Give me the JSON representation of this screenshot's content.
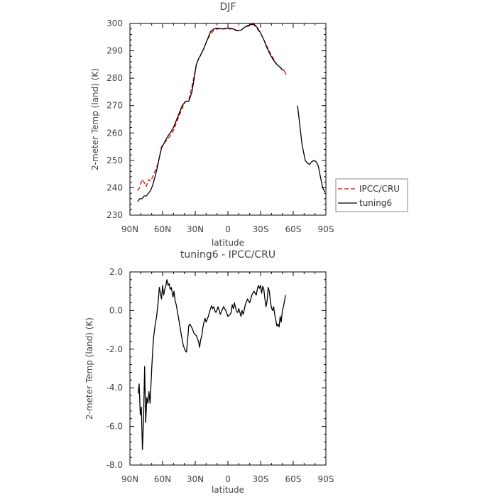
{
  "chart_data": [
    {
      "type": "line",
      "title": "DJF",
      "xlabel": "latitude",
      "ylabel": "2-meter Temp (land) (K)",
      "xlim": [
        90,
        -90
      ],
      "ylim": [
        230,
        300
      ],
      "xticks": [
        90,
        60,
        30,
        0,
        -30,
        -60,
        -90
      ],
      "xtick_labels": [
        "90N",
        "60N",
        "30N",
        "0",
        "30S",
        "60S",
        "90S"
      ],
      "yticks": [
        230,
        240,
        250,
        260,
        270,
        280,
        290,
        300
      ],
      "ytick_labels": [
        "230",
        "240",
        "250",
        "260",
        "270",
        "280",
        "290",
        "300"
      ],
      "legend": {
        "placement": "outside-right"
      },
      "series": [
        {
          "name": "IPCC/CRU",
          "color": "#dd0000",
          "style": "dashed",
          "segments": [
            [
              [
                83,
                239
              ],
              [
                81,
                240
              ],
              [
                79,
                243
              ],
              [
                77,
                242
              ],
              [
                75,
                240.5
              ],
              [
                73,
                243
              ],
              [
                71,
                242.5
              ],
              [
                69,
                244
              ],
              [
                67,
                246
              ],
              [
                65,
                248
              ],
              [
                63,
                251
              ],
              [
                61,
                255
              ],
              [
                59,
                256
              ],
              [
                57,
                257
              ],
              [
                55,
                258
              ],
              [
                53,
                259
              ],
              [
                50,
                261
              ],
              [
                48,
                263
              ],
              [
                45,
                266
              ],
              [
                42,
                269
              ],
              [
                39,
                271.5
              ],
              [
                36,
                272
              ],
              [
                33,
                277
              ],
              [
                31,
                281
              ],
              [
                29,
                285
              ],
              [
                27,
                287
              ],
              [
                25,
                288.5
              ],
              [
                22,
                291
              ],
              [
                19,
                294
              ],
              [
                16,
                296
              ],
              [
                13,
                297.5
              ],
              [
                10,
                298
              ],
              [
                5,
                298
              ],
              [
                0,
                298
              ],
              [
                -5,
                298
              ],
              [
                -8,
                297.5
              ],
              [
                -12,
                297.5
              ],
              [
                -15,
                298.5
              ],
              [
                -18,
                299
              ],
              [
                -21,
                299.2
              ],
              [
                -24,
                299.5
              ],
              [
                -27,
                298
              ],
              [
                -30,
                296.5
              ],
              [
                -33,
                294
              ],
              [
                -36,
                291.5
              ],
              [
                -39,
                289
              ],
              [
                -42,
                287
              ],
              [
                -45,
                285
              ],
              [
                -48,
                284
              ],
              [
                -50,
                283
              ],
              [
                -52,
                282.5
              ],
              [
                -54,
                281
              ]
            ]
          ]
        },
        {
          "name": "tuning6",
          "color": "#000000",
          "style": "solid",
          "segments": [
            [
              [
                83,
                235
              ],
              [
                81,
                236
              ],
              [
                79,
                236
              ],
              [
                77,
                237
              ],
              [
                75,
                237
              ],
              [
                73,
                238
              ],
              [
                71,
                239
              ],
              [
                69,
                241
              ],
              [
                67,
                244
              ],
              [
                65,
                247
              ],
              [
                63,
                251
              ],
              [
                61,
                254.5
              ],
              [
                59,
                256
              ],
              [
                57,
                257.5
              ],
              [
                55,
                259
              ],
              [
                53,
                260
              ],
              [
                50,
                262
              ],
              [
                48,
                264
              ],
              [
                45,
                267
              ],
              [
                42,
                270
              ],
              [
                39,
                271.5
              ],
              [
                36,
                271.5
              ],
              [
                33,
                275
              ],
              [
                31,
                280
              ],
              [
                29,
                285
              ],
              [
                27,
                287
              ],
              [
                25,
                288.5
              ],
              [
                22,
                291
              ],
              [
                19,
                294
              ],
              [
                16,
                297
              ],
              [
                13,
                298
              ],
              [
                10,
                298.3
              ],
              [
                5,
                298
              ],
              [
                0,
                298.3
              ],
              [
                -5,
                298
              ],
              [
                -8,
                297.3
              ],
              [
                -12,
                297.5
              ],
              [
                -15,
                298.5
              ],
              [
                -18,
                299.2
              ],
              [
                -21,
                299.6
              ],
              [
                -24,
                299.8
              ],
              [
                -27,
                298.5
              ],
              [
                -30,
                296.5
              ],
              [
                -33,
                294
              ],
              [
                -36,
                291
              ],
              [
                -39,
                288.5
              ],
              [
                -42,
                286.5
              ],
              [
                -45,
                285
              ],
              [
                -48,
                284
              ],
              [
                -50,
                283
              ],
              [
                -52,
                283
              ]
            ],
            [
              [
                -64,
                270
              ],
              [
                -66,
                263
              ],
              [
                -68,
                256
              ],
              [
                -69,
                254
              ],
              [
                -71,
                250
              ],
              [
                -73,
                249
              ],
              [
                -75,
                248.5
              ],
              [
                -77,
                249.5
              ],
              [
                -79,
                250
              ],
              [
                -81,
                249.5
              ],
              [
                -83,
                248
              ],
              [
                -85,
                244
              ],
              [
                -87,
                240
              ],
              [
                -89,
                238.5
              ]
            ]
          ]
        }
      ]
    },
    {
      "type": "line",
      "title": "tuning6 - IPCC/CRU",
      "xlabel": "latitude",
      "ylabel": "2-meter Temp (land) (K)",
      "xlim": [
        90,
        -90
      ],
      "ylim": [
        -8,
        2
      ],
      "xticks": [
        90,
        60,
        30,
        0,
        -30,
        -60,
        -90
      ],
      "xtick_labels": [
        "90N",
        "60N",
        "30N",
        "0",
        "30S",
        "60S",
        "90S"
      ],
      "yticks": [
        -8,
        -6,
        -4,
        -2,
        0,
        2
      ],
      "ytick_labels": [
        "-8.0",
        "-6.0",
        "-4.0",
        "-2.0",
        "0.0",
        "2.0"
      ],
      "series": [
        {
          "color": "#000000",
          "style": "solid",
          "segments": [
            [
              [
                82.5,
                -4.3
              ],
              [
                81.5,
                -3.8
              ],
              [
                80.5,
                -5.4
              ],
              [
                79.5,
                -5.0
              ],
              [
                78.5,
                -7.2
              ],
              [
                77.5,
                -5.6
              ],
              [
                76.5,
                -2.9
              ],
              [
                75.5,
                -5.8
              ],
              [
                74.5,
                -4.5
              ],
              [
                73.5,
                -4.8
              ],
              [
                72.5,
                -4.2
              ],
              [
                71.5,
                -4.8
              ],
              [
                70,
                -3.0
              ],
              [
                68.5,
                -1.5
              ],
              [
                67,
                -0.8
              ],
              [
                65.5,
                -0.3
              ],
              [
                64,
                0.5
              ],
              [
                63,
                1.2
              ],
              [
                62,
                0.9
              ],
              [
                61,
                0.6
              ],
              [
                60,
                1.3
              ],
              [
                59,
                0.8
              ],
              [
                58,
                1.1
              ],
              [
                57,
                1.3
              ],
              [
                56,
                1.6
              ],
              [
                55,
                1.3
              ],
              [
                54,
                1.4
              ],
              [
                53,
                1.1
              ],
              [
                52,
                1.2
              ],
              [
                50.5,
                0.7
              ],
              [
                49.5,
                1.0
              ],
              [
                48.5,
                0.5
              ],
              [
                47.5,
                0.3
              ],
              [
                45,
                -0.5
              ],
              [
                43,
                -1.2
              ],
              [
                41,
                -1.8
              ],
              [
                39,
                -2.1
              ],
              [
                38,
                -2.15
              ],
              [
                37,
                -1.5
              ],
              [
                36,
                -0.8
              ],
              [
                35,
                -0.7
              ],
              [
                33,
                -0.9
              ],
              [
                31,
                -1.2
              ],
              [
                29,
                -1.3
              ],
              [
                27,
                -1.6
              ],
              [
                26,
                -1.9
              ],
              [
                25,
                -1.5
              ],
              [
                24,
                -1.3
              ],
              [
                23,
                -0.9
              ],
              [
                22,
                -0.6
              ],
              [
                21,
                -0.4
              ],
              [
                20,
                -0.6
              ],
              [
                18,
                -0.3
              ],
              [
                16,
                0.1
              ],
              [
                15,
                0.25
              ],
              [
                14,
                0.1
              ],
              [
                13,
                0.2
              ],
              [
                12,
                0.0
              ],
              [
                11,
                -0.1
              ],
              [
                10,
                0.05
              ],
              [
                9,
                0.2
              ],
              [
                8,
                0.0
              ],
              [
                7,
                -0.2
              ],
              [
                6,
                -0.05
              ],
              [
                4,
                0.2
              ],
              [
                2,
                0.0
              ],
              [
                0,
                -0.3
              ],
              [
                -2,
                -0.2
              ],
              [
                -3,
                -0.1
              ],
              [
                -4,
                0.3
              ],
              [
                -5,
                0.1
              ],
              [
                -6,
                0.4
              ],
              [
                -7,
                0.15
              ],
              [
                -8,
                -0.05
              ],
              [
                -9,
                -0.1
              ],
              [
                -10,
                0.1
              ],
              [
                -11,
                -0.1
              ],
              [
                -12,
                -0.3
              ],
              [
                -13,
                0.0
              ],
              [
                -14,
                -0.2
              ],
              [
                -16,
                0.3
              ],
              [
                -18,
                0.6
              ],
              [
                -20,
                0.4
              ],
              [
                -22,
                0.8
              ],
              [
                -24,
                1.0
              ],
              [
                -26,
                0.8
              ],
              [
                -27,
                1.1
              ],
              [
                -28,
                1.3
              ],
              [
                -29,
                1.15
              ],
              [
                -30,
                1.3
              ],
              [
                -31,
                0.9
              ],
              [
                -32,
                1.25
              ],
              [
                -33,
                1.1
              ],
              [
                -34,
                0.6
              ],
              [
                -35,
                0.2
              ],
              [
                -36,
                0.5
              ],
              [
                -37,
                1.2
              ],
              [
                -38,
                1.0
              ],
              [
                -39,
                0.5
              ],
              [
                -40,
                0.15
              ],
              [
                -41,
                0.0
              ],
              [
                -42,
                0.2
              ],
              [
                -43,
                -0.2
              ],
              [
                -44,
                -0.5
              ],
              [
                -45,
                -0.8
              ],
              [
                -46,
                -0.7
              ],
              [
                -47,
                -0.85
              ],
              [
                -48,
                -0.3
              ],
              [
                -49,
                -0.6
              ],
              [
                -50,
                0.0
              ],
              [
                -51,
                0.2
              ],
              [
                -52,
                0.5
              ],
              [
                -53,
                0.8
              ]
            ]
          ]
        }
      ]
    }
  ]
}
